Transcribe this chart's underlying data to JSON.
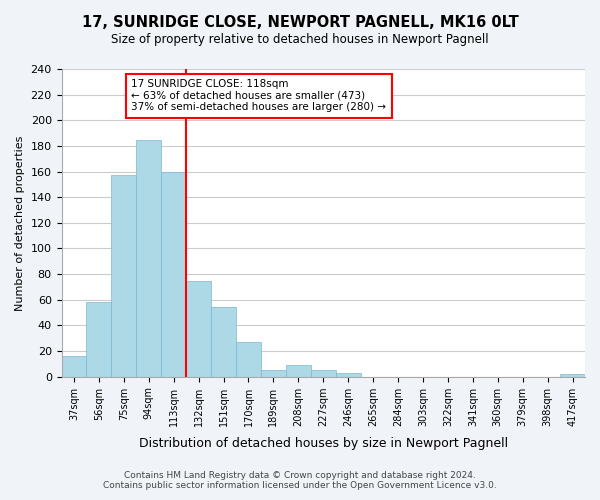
{
  "title": "17, SUNRIDGE CLOSE, NEWPORT PAGNELL, MK16 0LT",
  "subtitle": "Size of property relative to detached houses in Newport Pagnell",
  "xlabel": "Distribution of detached houses by size in Newport Pagnell",
  "ylabel": "Number of detached properties",
  "bar_values": [
    16,
    58,
    157,
    185,
    160,
    75,
    54,
    27,
    5,
    9,
    5,
    3,
    0,
    0,
    0,
    0,
    0,
    0,
    0,
    0,
    2
  ],
  "bar_labels": [
    "37sqm",
    "56sqm",
    "75sqm",
    "94sqm",
    "113sqm",
    "132sqm",
    "151sqm",
    "170sqm",
    "189sqm",
    "208sqm",
    "227sqm",
    "246sqm",
    "265sqm",
    "284sqm",
    "303sqm",
    "322sqm",
    "341sqm",
    "360sqm",
    "379sqm",
    "398sqm",
    "417sqm"
  ],
  "bar_color": "#add8e6",
  "bar_edge_color": "#7ab8d4",
  "vline_color": "red",
  "annotation_text": "17 SUNRIDGE CLOSE: 118sqm\n← 63% of detached houses are smaller (473)\n37% of semi-detached houses are larger (280) →",
  "annotation_box_color": "white",
  "annotation_box_edge_color": "red",
  "ylim": [
    0,
    240
  ],
  "yticks": [
    0,
    20,
    40,
    60,
    80,
    100,
    120,
    140,
    160,
    180,
    200,
    220,
    240
  ],
  "footer_text": "Contains HM Land Registry data © Crown copyright and database right 2024.\nContains public sector information licensed under the Open Government Licence v3.0.",
  "background_color": "#f0f4f8",
  "plot_background_color": "white",
  "grid_color": "#cccccc"
}
